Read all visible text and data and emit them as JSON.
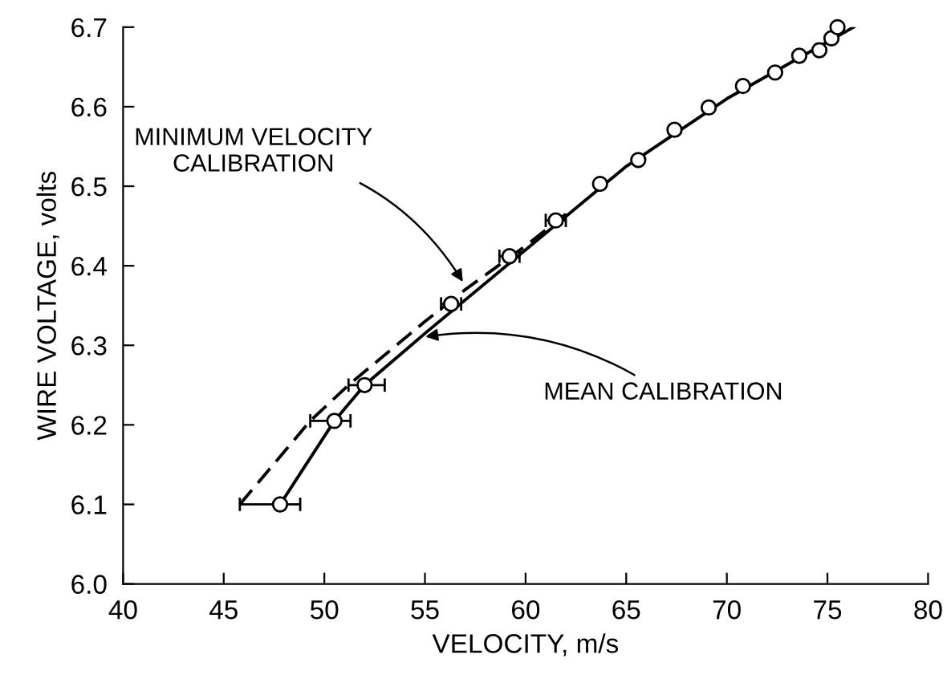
{
  "chart_data": {
    "type": "scatter",
    "xlabel": "VELOCITY, m/s",
    "ylabel": "WIRE VOLTAGE, volts",
    "xlim": [
      40,
      80
    ],
    "xticks": [
      40,
      45,
      50,
      55,
      60,
      65,
      70,
      75,
      80
    ],
    "ylim": [
      6.0,
      6.7
    ],
    "yticks": [
      {
        "value": 6.0,
        "label": "6.0"
      },
      6.1,
      6.2,
      6.3,
      6.4,
      6.5,
      6.6,
      6.7
    ],
    "grid": false,
    "legend": false,
    "series": [
      {
        "type": "line",
        "color": "#000000",
        "line_style": "dashed",
        "marker": "none",
        "x": [
          45.8,
          49.3,
          51.2,
          55.0,
          57.0,
          60.0,
          62.0
        ],
        "values": [
          6.1,
          6.205,
          6.25,
          6.33,
          6.37,
          6.425,
          6.465
        ]
      },
      {
        "type": "line",
        "color": "#000000",
        "line_style": "solid",
        "marker": "none",
        "x": [
          47.8,
          50.5,
          52.0,
          55.0,
          60.0,
          65.0,
          70.0,
          76.3
        ],
        "values": [
          6.1,
          6.205,
          6.25,
          6.315,
          6.42,
          6.525,
          6.61,
          6.7
        ]
      },
      {
        "color": "#000000",
        "marker": "circle",
        "x": [
          47.8,
          50.5,
          52.0,
          56.3,
          59.2,
          61.5,
          63.7,
          65.6,
          67.4,
          69.1,
          70.8,
          72.4,
          73.6,
          74.6,
          75.2,
          75.5
        ],
        "values": [
          6.1,
          6.205,
          6.25,
          6.352,
          6.412,
          6.457,
          6.503,
          6.533,
          6.571,
          6.599,
          6.626,
          6.643,
          6.664,
          6.671,
          6.686,
          6.7
        ],
        "xerrors": [
          [
            45.8,
            48.8
          ],
          [
            49.3,
            51.3
          ],
          [
            51.2,
            53.0
          ],
          [
            55.8,
            56.8
          ],
          [
            58.7,
            59.7
          ],
          [
            61.0,
            62.0
          ],
          null,
          null,
          null,
          null,
          null,
          null,
          null,
          null,
          null,
          null
        ]
      }
    ],
    "annotations": [
      {
        "text": "MINIMUM VELOCITY\nCALIBRATION",
        "x": 57.0,
        "y": 6.375
      },
      {
        "text": "MEAN CALIBRATION",
        "x": 54.8,
        "y": 6.31
      }
    ]
  }
}
